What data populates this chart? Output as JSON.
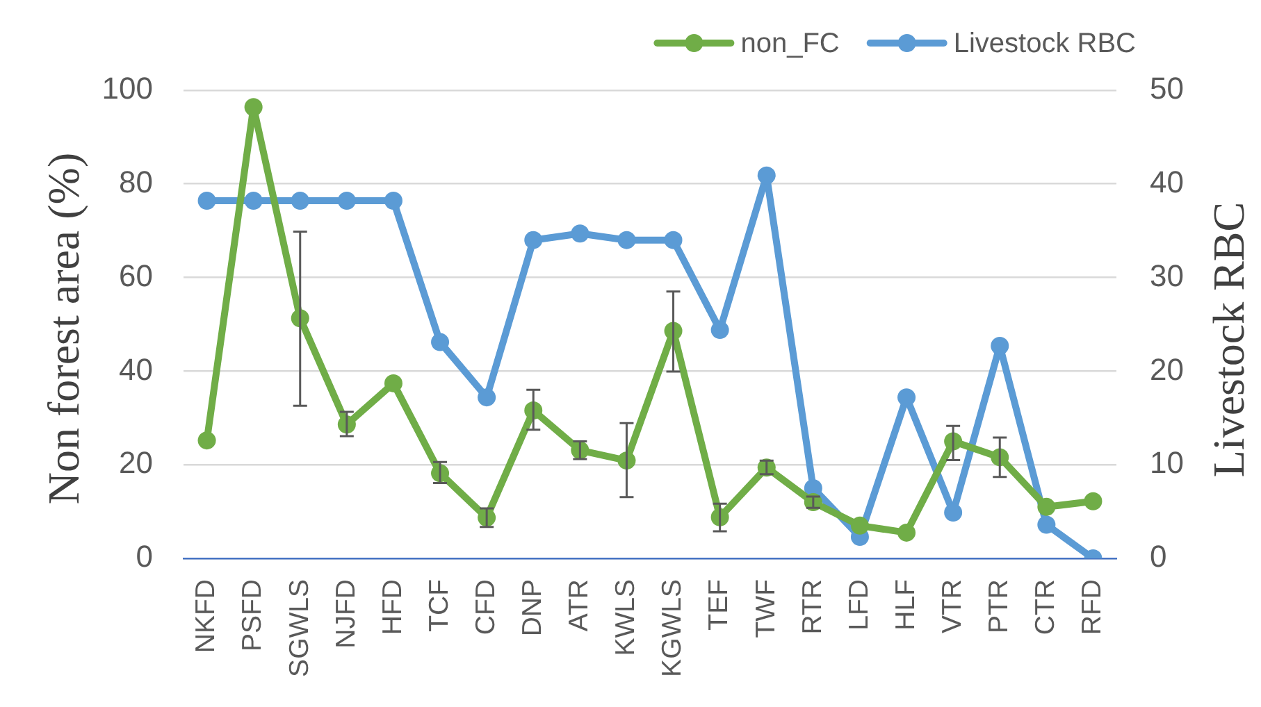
{
  "chart_data": {
    "type": "line",
    "categories": [
      "NKFD",
      "PSFD",
      "SGWLS",
      "NJFD",
      "HFD",
      "TCF",
      "CFD",
      "DNP",
      "ATR",
      "KWLS",
      "KGWLS",
      "TEF",
      "TWF",
      "RTR",
      "LFD",
      "HLF",
      "VTR",
      "PTR",
      "CTR",
      "RFD"
    ],
    "ylabel": "Non forest area (%)",
    "y2label": "Livestock RBC",
    "ylim": [
      0,
      100
    ],
    "yticks": [
      0,
      20,
      40,
      60,
      80,
      100
    ],
    "y2lim": [
      0,
      50
    ],
    "y2ticks": [
      0,
      10,
      20,
      30,
      40,
      50
    ],
    "grid": "y",
    "legend": "top right",
    "marker": "circle",
    "line_style": "solid",
    "series": [
      {
        "name": "non_FC",
        "color": "#70ad47",
        "values": [
          25.2,
          96.4,
          51.3,
          28.6,
          37.4,
          18.2,
          8.7,
          31.6,
          23.1,
          20.9,
          48.6,
          8.8,
          19.4,
          12.0,
          7.0,
          5.5,
          25.0,
          21.6,
          11.0,
          12.2
        ],
        "errors": [
          null,
          null,
          [
            32.6,
            69.8
          ],
          [
            26.1,
            31.3
          ],
          null,
          [
            16.1,
            20.6
          ],
          [
            6.7,
            10.7
          ],
          [
            27.5,
            36.0
          ],
          [
            21.2,
            25.0
          ],
          [
            13.1,
            28.9
          ],
          [
            39.9,
            57.0
          ],
          [
            5.8,
            11.7
          ],
          [
            18.0,
            20.9
          ],
          [
            10.8,
            13.2
          ],
          null,
          null,
          [
            21.0,
            28.3
          ],
          [
            17.4,
            25.8
          ],
          null,
          null
        ]
      },
      {
        "name": "Livestock RBC",
        "color": "#5b9bd5",
        "axis": "y2",
        "values": [
          38.2,
          38.2,
          38.2,
          38.2,
          38.2,
          23.1,
          17.2,
          34.0,
          34.7,
          34.0,
          34.0,
          24.4,
          40.9,
          7.5,
          2.3,
          17.2,
          4.9,
          22.7,
          3.6,
          0
        ]
      }
    ]
  }
}
